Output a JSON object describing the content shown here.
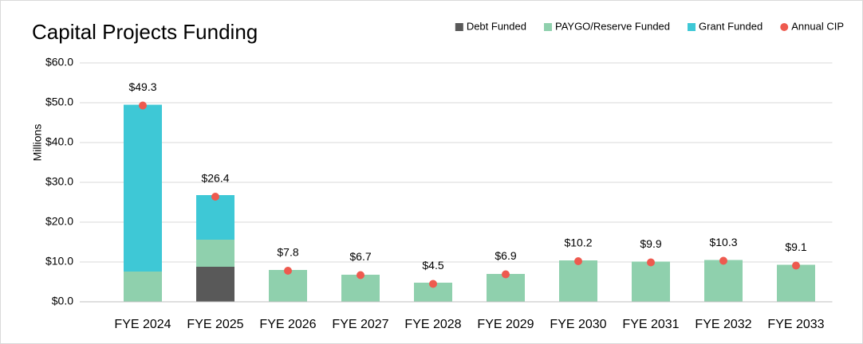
{
  "chart_data": {
    "type": "bar",
    "stacked": true,
    "title": "Capital Projects Funding",
    "ylabel": "Millions",
    "categories": [
      "FYE 2024",
      "FYE 2025",
      "FYE 2026",
      "FYE 2027",
      "FYE 2028",
      "FYE 2029",
      "FYE 2030",
      "FYE 2031",
      "FYE 2032",
      "FYE 2033"
    ],
    "series": [
      {
        "name": "Debt Funded",
        "kind": "bar",
        "color": "#595959",
        "values": [
          0,
          8.8,
          0,
          0,
          0,
          0,
          0,
          0,
          0,
          0
        ]
      },
      {
        "name": "PAYGO/Reserve Funded",
        "kind": "bar",
        "color": "#8fd0ad",
        "values": [
          7.6,
          6.8,
          8.0,
          6.8,
          4.8,
          7.0,
          10.4,
          10.1,
          10.5,
          9.3
        ]
      },
      {
        "name": "Grant Funded",
        "kind": "bar",
        "color": "#3ec8d6",
        "values": [
          41.9,
          11.2,
          0,
          0,
          0,
          0,
          0,
          0,
          0,
          0
        ]
      },
      {
        "name": "Annual CIP",
        "kind": "dot",
        "color": "#ee5a4f",
        "values": [
          49.3,
          26.4,
          7.8,
          6.7,
          4.5,
          6.9,
          10.2,
          9.9,
          10.3,
          9.1
        ],
        "value_labels": [
          "$49.3",
          "$26.4",
          "$7.8",
          "$6.7",
          "$4.5",
          "$6.9",
          "$10.2",
          "$9.9",
          "$10.3",
          "$9.1"
        ]
      }
    ],
    "ylim": [
      0,
      60
    ],
    "yticks": [
      {
        "value": 0,
        "label": "$0.0"
      },
      {
        "value": 10,
        "label": "$10.0"
      },
      {
        "value": 20,
        "label": "$20.0"
      },
      {
        "value": 30,
        "label": "$30.0"
      },
      {
        "value": 40,
        "label": "$40.0"
      },
      {
        "value": 50,
        "label": "$50.0"
      },
      {
        "value": 60,
        "label": "$60.0"
      }
    ],
    "grid": true,
    "legend": "top-right"
  }
}
